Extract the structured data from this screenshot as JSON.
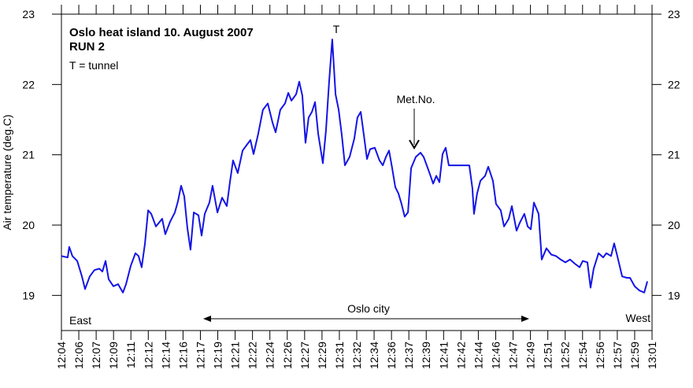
{
  "chart_data": {
    "type": "line",
    "title": "Oslo heat island 10. August 2007",
    "subtitle": "RUN 2",
    "note": "T = tunnel",
    "ylabel": "Air temperature (deg.C)",
    "annotations": [
      "T",
      "Met.No.",
      "Oslo city",
      "East",
      "West"
    ],
    "xlim": [
      0,
      34
    ],
    "ylim": [
      18.5,
      23
    ],
    "yticks": [
      19,
      20,
      21,
      22,
      23
    ],
    "xticks": [
      {
        "value": 0,
        "label": "12:04"
      },
      {
        "value": 1,
        "label": "12:06"
      },
      {
        "value": 2,
        "label": "12:07"
      },
      {
        "value": 3,
        "label": "12:09"
      },
      {
        "value": 4,
        "label": "12:11"
      },
      {
        "value": 5,
        "label": "12:12"
      },
      {
        "value": 6,
        "label": "12:14"
      },
      {
        "value": 7,
        "label": "12:16"
      },
      {
        "value": 8,
        "label": "12:17"
      },
      {
        "value": 9,
        "label": "12:19"
      },
      {
        "value": 10,
        "label": "12:21"
      },
      {
        "value": 11,
        "label": "12:22"
      },
      {
        "value": 12,
        "label": "12:24"
      },
      {
        "value": 13,
        "label": "12:26"
      },
      {
        "value": 14,
        "label": "12:27"
      },
      {
        "value": 15,
        "label": "12:29"
      },
      {
        "value": 16,
        "label": "12:31"
      },
      {
        "value": 17,
        "label": "12:32"
      },
      {
        "value": 18,
        "label": "12:34"
      },
      {
        "value": 19,
        "label": "12:36"
      },
      {
        "value": 20,
        "label": "12:37"
      },
      {
        "value": 21,
        "label": "12:39"
      },
      {
        "value": 22,
        "label": "12:41"
      },
      {
        "value": 23,
        "label": "12:42"
      },
      {
        "value": 24,
        "label": "12:44"
      },
      {
        "value": 25,
        "label": "12:46"
      },
      {
        "value": 26,
        "label": "12:47"
      },
      {
        "value": 27,
        "label": "12:49"
      },
      {
        "value": 28,
        "label": "12:51"
      },
      {
        "value": 29,
        "label": "12:52"
      },
      {
        "value": 30,
        "label": "12:54"
      },
      {
        "value": 31,
        "label": "12:56"
      },
      {
        "value": 32,
        "label": "12:57"
      },
      {
        "value": 33,
        "label": "12:59"
      },
      {
        "value": 34,
        "label": "13:01"
      }
    ],
    "color": "#1414e6",
    "x": [
      0,
      0.36,
      0.45,
      0.63,
      0.91,
      1.18,
      1.36,
      1.63,
      1.9,
      2.18,
      2.36,
      2.54,
      2.72,
      2.99,
      3.26,
      3.54,
      3.72,
      3.99,
      4.26,
      4.44,
      4.62,
      4.81,
      4.99,
      5.17,
      5.44,
      5.8,
      5.98,
      6.26,
      6.53,
      6.71,
      6.89,
      7.07,
      7.25,
      7.43,
      7.62,
      7.89,
      8.07,
      8.25,
      8.52,
      8.7,
      8.98,
      9.25,
      9.52,
      9.7,
      9.88,
      10.15,
      10.43,
      10.7,
      10.88,
      11.06,
      11.33,
      11.6,
      11.88,
      12.15,
      12.33,
      12.6,
      12.87,
      13.06,
      13.24,
      13.51,
      13.69,
      13.87,
      14.05,
      14.23,
      14.42,
      14.6,
      14.78,
      15.05,
      15.23,
      15.41,
      15.59,
      15.78,
      15.96,
      16.14,
      16.32,
      16.59,
      16.86,
      17.04,
      17.23,
      17.41,
      17.59,
      17.77,
      18.04,
      18.31,
      18.5,
      18.68,
      18.86,
      19.04,
      19.22,
      19.4,
      19.58,
      19.76,
      19.95,
      20.13,
      20.4,
      20.67,
      20.85,
      21.03,
      21.22,
      21.4,
      21.58,
      21.76,
      21.94,
      22.12,
      22.3,
      22.58,
      22.85,
      23.21,
      23.48,
      23.66,
      23.75,
      23.93,
      24.12,
      24.39,
      24.57,
      24.84,
      25.02,
      25.29,
      25.48,
      25.75,
      25.93,
      26.2,
      26.38,
      26.65,
      26.84,
      27.02,
      27.2,
      27.47,
      27.65,
      27.92,
      28.2,
      28.47,
      28.74,
      29.01,
      29.28,
      29.56,
      29.83,
      30.01,
      30.28,
      30.46,
      30.64,
      30.92,
      31.19,
      31.37,
      31.64,
      31.82,
      32.0,
      32.28,
      32.55,
      32.73,
      33.0,
      33.27,
      33.55,
      33.73
    ],
    "values": [
      19.56,
      19.54,
      19.69,
      19.56,
      19.49,
      19.27,
      19.09,
      19.27,
      19.36,
      19.38,
      19.34,
      19.49,
      19.23,
      19.13,
      19.16,
      19.04,
      19.16,
      19.42,
      19.6,
      19.56,
      19.4,
      19.74,
      20.21,
      20.16,
      19.98,
      20.09,
      19.87,
      20.05,
      20.18,
      20.34,
      20.56,
      20.41,
      19.96,
      19.65,
      20.18,
      20.14,
      19.85,
      20.16,
      20.32,
      20.56,
      20.18,
      20.39,
      20.27,
      20.61,
      20.92,
      20.74,
      21.06,
      21.15,
      21.21,
      21.01,
      21.3,
      21.64,
      21.73,
      21.46,
      21.32,
      21.64,
      21.73,
      21.88,
      21.77,
      21.86,
      22.04,
      21.84,
      21.17,
      21.53,
      21.61,
      21.75,
      21.3,
      20.88,
      21.35,
      22.04,
      22.64,
      21.86,
      21.64,
      21.28,
      20.85,
      20.97,
      21.23,
      21.53,
      21.61,
      21.28,
      20.94,
      21.08,
      21.1,
      20.92,
      20.85,
      20.97,
      21.06,
      20.81,
      20.54,
      20.45,
      20.3,
      20.12,
      20.18,
      20.81,
      20.97,
      21.03,
      20.97,
      20.85,
      20.72,
      20.59,
      20.7,
      20.61,
      21.01,
      21.1,
      20.85,
      20.85,
      20.85,
      20.85,
      20.85,
      20.52,
      20.16,
      20.45,
      20.63,
      20.7,
      20.83,
      20.63,
      20.3,
      20.21,
      19.98,
      20.09,
      20.27,
      19.92,
      20.03,
      20.16,
      19.98,
      19.94,
      20.32,
      20.16,
      19.51,
      19.67,
      19.58,
      19.56,
      19.51,
      19.47,
      19.51,
      19.45,
      19.4,
      19.49,
      19.47,
      19.11,
      19.38,
      19.6,
      19.54,
      19.6,
      19.56,
      19.74,
      19.56,
      19.27,
      19.25,
      19.25,
      19.13,
      19.07,
      19.04,
      19.2
    ]
  }
}
